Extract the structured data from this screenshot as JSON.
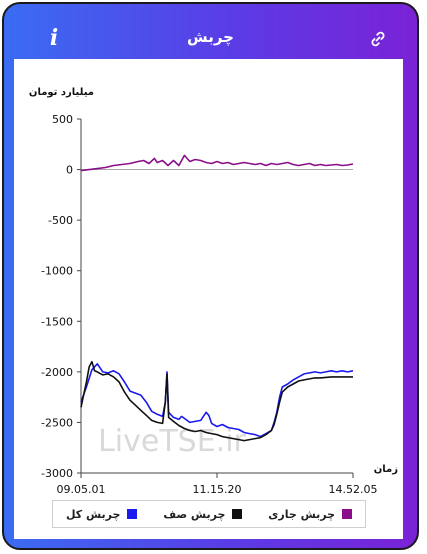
{
  "header": {
    "title": "چربش",
    "info_label": "i"
  },
  "chart_data": {
    "type": "line",
    "ylabel": "میلیارد تومان",
    "xlabel": "زمان",
    "ylim": [
      -3000,
      500
    ],
    "yticks": [
      500,
      0,
      -500,
      -1000,
      -1500,
      -2000,
      -2500,
      -3000
    ],
    "xticks": [
      "09.05.01",
      "11.15.20",
      "14.52.05"
    ],
    "grid": false,
    "watermark": "LiveTSE.ir",
    "series": [
      {
        "name": "چربش کل",
        "color": "#1a1aee",
        "points": [
          [
            0,
            -2300
          ],
          [
            2,
            -2150
          ],
          [
            4,
            -1980
          ],
          [
            6,
            -1920
          ],
          [
            8,
            -2000
          ],
          [
            10,
            -2010
          ],
          [
            12,
            -1990
          ],
          [
            14,
            -2020
          ],
          [
            16,
            -2100
          ],
          [
            18,
            -2190
          ],
          [
            20,
            -2210
          ],
          [
            22,
            -2230
          ],
          [
            24,
            -2300
          ],
          [
            26,
            -2390
          ],
          [
            28,
            -2420
          ],
          [
            30,
            -2440
          ],
          [
            31,
            -2300
          ],
          [
            31.6,
            -2000
          ],
          [
            32.2,
            -2400
          ],
          [
            34,
            -2450
          ],
          [
            36,
            -2470
          ],
          [
            37,
            -2440
          ],
          [
            38,
            -2460
          ],
          [
            40,
            -2500
          ],
          [
            42,
            -2490
          ],
          [
            44,
            -2480
          ],
          [
            46,
            -2400
          ],
          [
            47,
            -2430
          ],
          [
            48,
            -2510
          ],
          [
            50,
            -2540
          ],
          [
            52,
            -2520
          ],
          [
            54,
            -2550
          ],
          [
            56,
            -2560
          ],
          [
            58,
            -2570
          ],
          [
            60,
            -2600
          ],
          [
            62,
            -2610
          ],
          [
            64,
            -2620
          ],
          [
            66,
            -2640
          ],
          [
            68,
            -2610
          ],
          [
            70,
            -2580
          ],
          [
            71,
            -2500
          ],
          [
            72,
            -2400
          ],
          [
            73,
            -2250
          ],
          [
            74,
            -2150
          ],
          [
            76,
            -2120
          ],
          [
            78,
            -2080
          ],
          [
            80,
            -2050
          ],
          [
            82,
            -2020
          ],
          [
            84,
            -2010
          ],
          [
            86,
            -2000
          ],
          [
            88,
            -2010
          ],
          [
            90,
            -2000
          ],
          [
            92,
            -1990
          ],
          [
            94,
            -2000
          ],
          [
            96,
            -1990
          ],
          [
            98,
            -2000
          ],
          [
            100,
            -1990
          ]
        ]
      },
      {
        "name": "چربش صف",
        "color": "#111111",
        "points": [
          [
            0,
            -2350
          ],
          [
            2,
            -2100
          ],
          [
            3,
            -1950
          ],
          [
            4,
            -1900
          ],
          [
            5,
            -1990
          ],
          [
            6,
            -2000
          ],
          [
            8,
            -2030
          ],
          [
            10,
            -2020
          ],
          [
            12,
            -2050
          ],
          [
            14,
            -2100
          ],
          [
            16,
            -2200
          ],
          [
            18,
            -2280
          ],
          [
            20,
            -2330
          ],
          [
            22,
            -2380
          ],
          [
            24,
            -2430
          ],
          [
            26,
            -2480
          ],
          [
            28,
            -2500
          ],
          [
            30,
            -2510
          ],
          [
            31,
            -2300
          ],
          [
            31.6,
            -2020
          ],
          [
            32.2,
            -2450
          ],
          [
            34,
            -2490
          ],
          [
            36,
            -2530
          ],
          [
            38,
            -2560
          ],
          [
            40,
            -2580
          ],
          [
            42,
            -2590
          ],
          [
            44,
            -2580
          ],
          [
            46,
            -2600
          ],
          [
            48,
            -2610
          ],
          [
            50,
            -2620
          ],
          [
            52,
            -2640
          ],
          [
            54,
            -2650
          ],
          [
            56,
            -2660
          ],
          [
            58,
            -2670
          ],
          [
            60,
            -2680
          ],
          [
            62,
            -2670
          ],
          [
            64,
            -2660
          ],
          [
            66,
            -2650
          ],
          [
            68,
            -2620
          ],
          [
            70,
            -2580
          ],
          [
            71,
            -2520
          ],
          [
            72,
            -2420
          ],
          [
            73,
            -2300
          ],
          [
            74,
            -2200
          ],
          [
            76,
            -2150
          ],
          [
            78,
            -2120
          ],
          [
            80,
            -2090
          ],
          [
            82,
            -2080
          ],
          [
            84,
            -2070
          ],
          [
            86,
            -2060
          ],
          [
            88,
            -2060
          ],
          [
            90,
            -2055
          ],
          [
            92,
            -2050
          ],
          [
            94,
            -2050
          ],
          [
            96,
            -2050
          ],
          [
            98,
            -2050
          ],
          [
            100,
            -2050
          ]
        ]
      },
      {
        "name": "چربش جاری",
        "color": "#8a0e8a",
        "points": [
          [
            0,
            -10
          ],
          [
            3,
            0
          ],
          [
            6,
            10
          ],
          [
            9,
            20
          ],
          [
            12,
            40
          ],
          [
            15,
            50
          ],
          [
            18,
            60
          ],
          [
            21,
            80
          ],
          [
            23,
            90
          ],
          [
            25,
            60
          ],
          [
            27,
            110
          ],
          [
            28,
            70
          ],
          [
            30,
            90
          ],
          [
            32,
            40
          ],
          [
            34,
            90
          ],
          [
            36,
            40
          ],
          [
            38,
            140
          ],
          [
            40,
            80
          ],
          [
            42,
            100
          ],
          [
            44,
            90
          ],
          [
            46,
            70
          ],
          [
            48,
            60
          ],
          [
            50,
            80
          ],
          [
            52,
            60
          ],
          [
            54,
            70
          ],
          [
            56,
            50
          ],
          [
            58,
            60
          ],
          [
            60,
            70
          ],
          [
            62,
            60
          ],
          [
            64,
            50
          ],
          [
            66,
            60
          ],
          [
            68,
            40
          ],
          [
            70,
            60
          ],
          [
            72,
            50
          ],
          [
            74,
            60
          ],
          [
            76,
            70
          ],
          [
            78,
            50
          ],
          [
            80,
            40
          ],
          [
            82,
            50
          ],
          [
            84,
            60
          ],
          [
            86,
            40
          ],
          [
            88,
            50
          ],
          [
            90,
            40
          ],
          [
            92,
            45
          ],
          [
            94,
            50
          ],
          [
            96,
            40
          ],
          [
            98,
            45
          ],
          [
            100,
            55
          ]
        ]
      }
    ]
  }
}
